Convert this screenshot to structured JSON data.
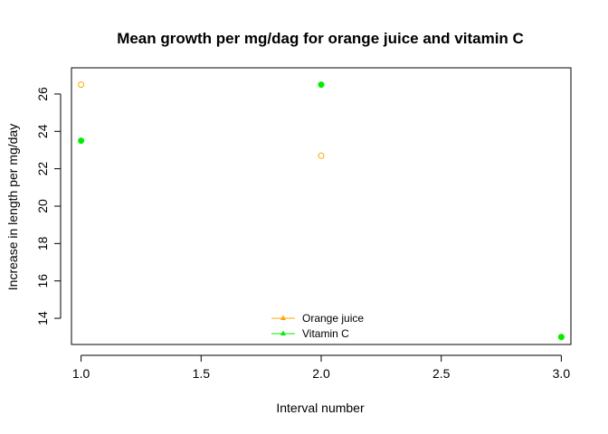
{
  "chart_data": {
    "type": "scatter",
    "title": "Mean growth per mg/dag for orange juice and vitamin C",
    "xlabel": "Interval number",
    "ylabel": "Increase in length per mg/day",
    "xlim": [
      0.96,
      3.04
    ],
    "ylim": [
      12.6,
      27.4
    ],
    "x_ticks": [
      "1.0",
      "1.5",
      "2.0",
      "2.5",
      "3.0"
    ],
    "x_tick_values": [
      1.0,
      1.5,
      2.0,
      2.5,
      3.0
    ],
    "y_ticks": [
      "14",
      "16",
      "18",
      "20",
      "22",
      "24",
      "26"
    ],
    "y_tick_values": [
      14,
      16,
      18,
      20,
      22,
      24,
      26
    ],
    "grid": false,
    "legend_position": "bottom-center",
    "series": [
      {
        "name": "Orange juice",
        "color": "#FFA500",
        "marker": "open-circle",
        "x": [
          1,
          2,
          3
        ],
        "y": [
          26.5,
          22.7,
          13.0
        ]
      },
      {
        "name": "Vitamin C",
        "color": "#00EE00",
        "marker": "filled-circle",
        "x": [
          1,
          2,
          3
        ],
        "y": [
          23.5,
          26.5,
          13.0
        ]
      }
    ]
  }
}
